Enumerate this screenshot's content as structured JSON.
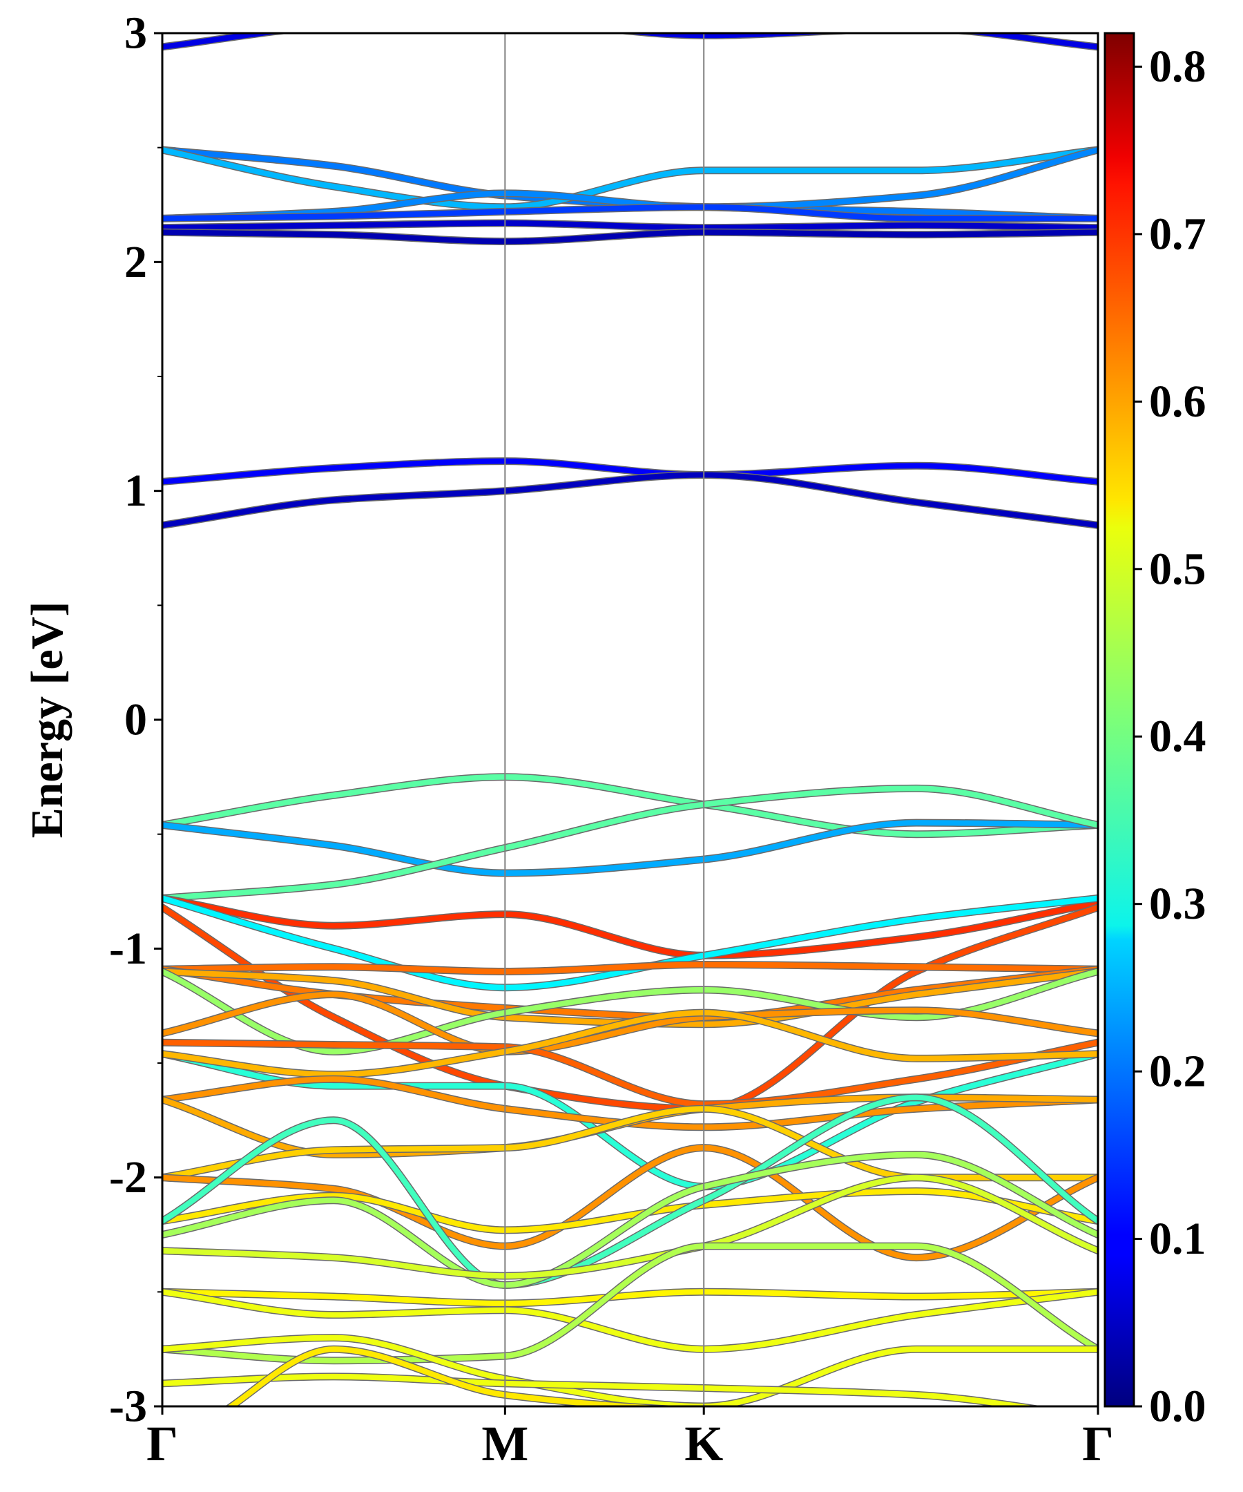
{
  "chart_data": {
    "type": "line",
    "ylabel": "Energy [eV]",
    "xlabel": "",
    "ylim": [
      -3,
      3
    ],
    "y_ticks": [
      "-3",
      "-2",
      "-1",
      "0",
      "1",
      "2",
      "3"
    ],
    "x_ticks": [
      "Γ",
      "M",
      "K",
      "Γ"
    ],
    "k_points": [
      0,
      1,
      1.58,
      2.73
    ],
    "colorbar": {
      "range": [
        0,
        0.82
      ],
      "ticks": [
        "0.0",
        "0.1",
        "0.2",
        "0.3",
        "0.4",
        "0.5",
        "0.6",
        "0.7",
        "0.8"
      ]
    },
    "series": [
      {
        "values": [
          [
            0,
            2.94
          ],
          [
            0.5,
            3.03
          ],
          [
            1,
            3.05
          ],
          [
            1.58,
            2.99
          ],
          [
            2.2,
            3.02
          ],
          [
            2.73,
            2.94
          ]
        ],
        "color_value": 0.08
      },
      {
        "values": [
          [
            0,
            2.49
          ],
          [
            0.5,
            2.42
          ],
          [
            1,
            2.29
          ],
          [
            1.58,
            2.24
          ],
          [
            2.2,
            2.22
          ],
          [
            2.73,
            2.19
          ]
        ],
        "color_value": 0.2
      },
      {
        "values": [
          [
            0,
            2.49
          ],
          [
            0.5,
            2.33
          ],
          [
            1,
            2.24
          ],
          [
            1.58,
            2.4
          ],
          [
            2.2,
            2.4
          ],
          [
            2.73,
            2.49
          ]
        ],
        "color_value": 0.25
      },
      {
        "values": [
          [
            0,
            2.19
          ],
          [
            0.5,
            2.22
          ],
          [
            1,
            2.3
          ],
          [
            1.58,
            2.24
          ],
          [
            2.2,
            2.29
          ],
          [
            2.73,
            2.49
          ]
        ],
        "color_value": 0.21
      },
      {
        "values": [
          [
            0,
            2.19
          ],
          [
            0.5,
            2.2
          ],
          [
            1,
            2.22
          ],
          [
            1.58,
            2.24
          ],
          [
            2.2,
            2.19
          ],
          [
            2.73,
            2.19
          ]
        ],
        "color_value": 0.15
      },
      {
        "values": [
          [
            0,
            2.15
          ],
          [
            0.5,
            2.16
          ],
          [
            1,
            2.17
          ],
          [
            1.58,
            2.15
          ],
          [
            2.2,
            2.16
          ],
          [
            2.73,
            2.15
          ]
        ],
        "color_value": 0.06
      },
      {
        "values": [
          [
            0,
            2.13
          ],
          [
            0.5,
            2.12
          ],
          [
            1,
            2.09
          ],
          [
            1.58,
            2.13
          ],
          [
            2.2,
            2.12
          ],
          [
            2.73,
            2.13
          ]
        ],
        "color_value": 0.04
      },
      {
        "values": [
          [
            0,
            1.04
          ],
          [
            0.5,
            1.1
          ],
          [
            1,
            1.13
          ],
          [
            1.58,
            1.07
          ],
          [
            2.2,
            1.11
          ],
          [
            2.73,
            1.04
          ]
        ],
        "color_value": 0.1
      },
      {
        "values": [
          [
            0,
            0.85
          ],
          [
            0.5,
            0.96
          ],
          [
            1,
            1.0
          ],
          [
            1.58,
            1.07
          ],
          [
            2.2,
            0.95
          ],
          [
            2.73,
            0.85
          ]
        ],
        "color_value": 0.05
      },
      {
        "values": [
          [
            0,
            -0.46
          ],
          [
            0.5,
            -0.33
          ],
          [
            1,
            -0.25
          ],
          [
            1.58,
            -0.37
          ],
          [
            2.2,
            -0.5
          ],
          [
            2.73,
            -0.46
          ]
        ],
        "color_value": 0.38
      },
      {
        "values": [
          [
            0,
            -0.46
          ],
          [
            0.5,
            -0.55
          ],
          [
            1,
            -0.67
          ],
          [
            1.58,
            -0.61
          ],
          [
            2.2,
            -0.45
          ],
          [
            2.73,
            -0.46
          ]
        ],
        "color_value": 0.24
      },
      {
        "values": [
          [
            0,
            -0.78
          ],
          [
            0.5,
            -0.72
          ],
          [
            1,
            -0.56
          ],
          [
            1.58,
            -0.37
          ],
          [
            2.2,
            -0.3
          ],
          [
            2.73,
            -0.46
          ]
        ],
        "color_value": 0.38
      },
      {
        "values": [
          [
            0,
            -0.78
          ],
          [
            0.5,
            -0.9
          ],
          [
            1,
            -0.85
          ],
          [
            1.58,
            -1.03
          ],
          [
            2.2,
            -0.95
          ],
          [
            2.73,
            -0.8
          ]
        ],
        "color_value": 0.68
      },
      {
        "values": [
          [
            0,
            -0.78
          ],
          [
            0.5,
            -1.0
          ],
          [
            1,
            -1.17
          ],
          [
            1.58,
            -1.03
          ],
          [
            2.2,
            -0.87
          ],
          [
            2.73,
            -0.78
          ]
        ],
        "color_value": 0.3
      },
      {
        "values": [
          [
            0,
            -0.82
          ],
          [
            0.5,
            -1.3
          ],
          [
            1,
            -1.6
          ],
          [
            1.58,
            -1.7
          ],
          [
            2.2,
            -1.1
          ],
          [
            2.73,
            -0.82
          ]
        ],
        "color_value": 0.66
      },
      {
        "values": [
          [
            0,
            -1.09
          ],
          [
            0.5,
            -1.08
          ],
          [
            1,
            -1.1
          ],
          [
            1.58,
            -1.07
          ],
          [
            2.2,
            -1.08
          ],
          [
            2.73,
            -1.09
          ]
        ],
        "color_value": 0.63
      },
      {
        "values": [
          [
            0,
            -1.09
          ],
          [
            0.5,
            -1.2
          ],
          [
            1,
            -1.26
          ],
          [
            1.58,
            -1.3
          ],
          [
            2.2,
            -1.18
          ],
          [
            2.73,
            -1.09
          ]
        ],
        "color_value": 0.62
      },
      {
        "values": [
          [
            0,
            -1.1
          ],
          [
            0.5,
            -1.14
          ],
          [
            1,
            -1.3
          ],
          [
            1.58,
            -1.33
          ],
          [
            2.2,
            -1.2
          ],
          [
            2.73,
            -1.1
          ]
        ],
        "color_value": 0.58
      },
      {
        "values": [
          [
            0,
            -1.1
          ],
          [
            0.5,
            -1.45
          ],
          [
            1,
            -1.28
          ],
          [
            1.58,
            -1.18
          ],
          [
            2.2,
            -1.3
          ],
          [
            2.73,
            -1.1
          ]
        ],
        "color_value": 0.43
      },
      {
        "values": [
          [
            0,
            -1.37
          ],
          [
            0.5,
            -1.2
          ],
          [
            1,
            -1.45
          ],
          [
            1.58,
            -1.3
          ],
          [
            2.2,
            -1.27
          ],
          [
            2.73,
            -1.37
          ]
        ],
        "color_value": 0.6
      },
      {
        "values": [
          [
            0,
            -1.41
          ],
          [
            0.5,
            -1.42
          ],
          [
            1,
            -1.43
          ],
          [
            1.58,
            -1.68
          ],
          [
            2.2,
            -1.57
          ],
          [
            2.73,
            -1.41
          ]
        ],
        "color_value": 0.64
      },
      {
        "values": [
          [
            0,
            -1.46
          ],
          [
            0.5,
            -1.6
          ],
          [
            1,
            -1.6
          ],
          [
            1.58,
            -2.04
          ],
          [
            2.2,
            -1.67
          ],
          [
            2.73,
            -1.46
          ]
        ],
        "color_value": 0.34
      },
      {
        "values": [
          [
            0,
            -1.46
          ],
          [
            0.5,
            -1.55
          ],
          [
            1,
            -1.45
          ],
          [
            1.58,
            -1.28
          ],
          [
            2.2,
            -1.48
          ],
          [
            2.73,
            -1.46
          ]
        ],
        "color_value": 0.57
      },
      {
        "values": [
          [
            0,
            -1.66
          ],
          [
            0.5,
            -1.57
          ],
          [
            1,
            -1.7
          ],
          [
            1.58,
            -1.78
          ],
          [
            2.2,
            -1.7
          ],
          [
            2.73,
            -1.66
          ]
        ],
        "color_value": 0.6
      },
      {
        "values": [
          [
            0,
            -1.66
          ],
          [
            0.5,
            -1.9
          ],
          [
            1,
            -1.87
          ],
          [
            1.58,
            -1.7
          ],
          [
            2.2,
            -1.65
          ],
          [
            2.73,
            -1.66
          ]
        ],
        "color_value": 0.58
      },
      {
        "values": [
          [
            0,
            -2.0
          ],
          [
            0.5,
            -1.88
          ],
          [
            1,
            -1.87
          ],
          [
            1.58,
            -1.7
          ],
          [
            2.2,
            -2.0
          ],
          [
            2.73,
            -2.0
          ]
        ],
        "color_value": 0.55
      },
      {
        "values": [
          [
            0,
            -2.0
          ],
          [
            0.5,
            -2.05
          ],
          [
            1,
            -2.3
          ],
          [
            1.58,
            -1.87
          ],
          [
            2.2,
            -2.35
          ],
          [
            2.73,
            -2.0
          ]
        ],
        "color_value": 0.6
      },
      {
        "values": [
          [
            0,
            -2.19
          ],
          [
            0.5,
            -2.08
          ],
          [
            1,
            -2.23
          ],
          [
            1.58,
            -2.12
          ],
          [
            2.2,
            -2.06
          ],
          [
            2.73,
            -2.19
          ]
        ],
        "color_value": 0.53
      },
      {
        "values": [
          [
            0,
            -2.19
          ],
          [
            0.5,
            -1.75
          ],
          [
            1,
            -2.47
          ],
          [
            1.58,
            -2.1
          ],
          [
            2.2,
            -1.65
          ],
          [
            2.73,
            -2.19
          ]
        ],
        "color_value": 0.36
      },
      {
        "values": [
          [
            0,
            -2.25
          ],
          [
            0.5,
            -2.1
          ],
          [
            1,
            -2.47
          ],
          [
            1.58,
            -2.04
          ],
          [
            2.2,
            -1.9
          ],
          [
            2.73,
            -2.25
          ]
        ],
        "color_value": 0.44
      },
      {
        "values": [
          [
            0,
            -2.32
          ],
          [
            0.5,
            -2.35
          ],
          [
            1,
            -2.43
          ],
          [
            1.58,
            -2.3
          ],
          [
            2.2,
            -2.0
          ],
          [
            2.73,
            -2.32
          ]
        ],
        "color_value": 0.48
      },
      {
        "values": [
          [
            0,
            -2.5
          ],
          [
            0.5,
            -2.52
          ],
          [
            1,
            -2.55
          ],
          [
            1.58,
            -2.5
          ],
          [
            2.2,
            -2.52
          ],
          [
            2.73,
            -2.5
          ]
        ],
        "color_value": 0.52
      },
      {
        "values": [
          [
            0,
            -2.5
          ],
          [
            0.5,
            -2.6
          ],
          [
            1,
            -2.58
          ],
          [
            1.58,
            -2.75
          ],
          [
            2.2,
            -2.6
          ],
          [
            2.73,
            -2.5
          ]
        ],
        "color_value": 0.5
      },
      {
        "values": [
          [
            0,
            -2.75
          ],
          [
            0.5,
            -2.8
          ],
          [
            1,
            -2.78
          ],
          [
            1.58,
            -2.3
          ],
          [
            2.2,
            -2.3
          ],
          [
            2.73,
            -2.75
          ]
        ],
        "color_value": 0.45
      },
      {
        "values": [
          [
            0,
            -2.75
          ],
          [
            0.5,
            -2.7
          ],
          [
            1,
            -2.88
          ],
          [
            1.58,
            -3.0
          ],
          [
            2.2,
            -2.75
          ],
          [
            2.73,
            -2.75
          ]
        ],
        "color_value": 0.5
      },
      {
        "values": [
          [
            0,
            -2.9
          ],
          [
            0.5,
            -2.87
          ],
          [
            1,
            -2.9
          ],
          [
            1.58,
            -2.92
          ],
          [
            2.2,
            -2.95
          ],
          [
            2.73,
            -3.05
          ]
        ],
        "color_value": 0.5
      },
      {
        "values": [
          [
            0.15,
            -3.05
          ],
          [
            0.5,
            -2.75
          ],
          [
            1,
            -2.95
          ],
          [
            1.58,
            -3.02
          ],
          [
            2.2,
            -3.05
          ]
        ],
        "color_value": 0.53
      }
    ]
  }
}
